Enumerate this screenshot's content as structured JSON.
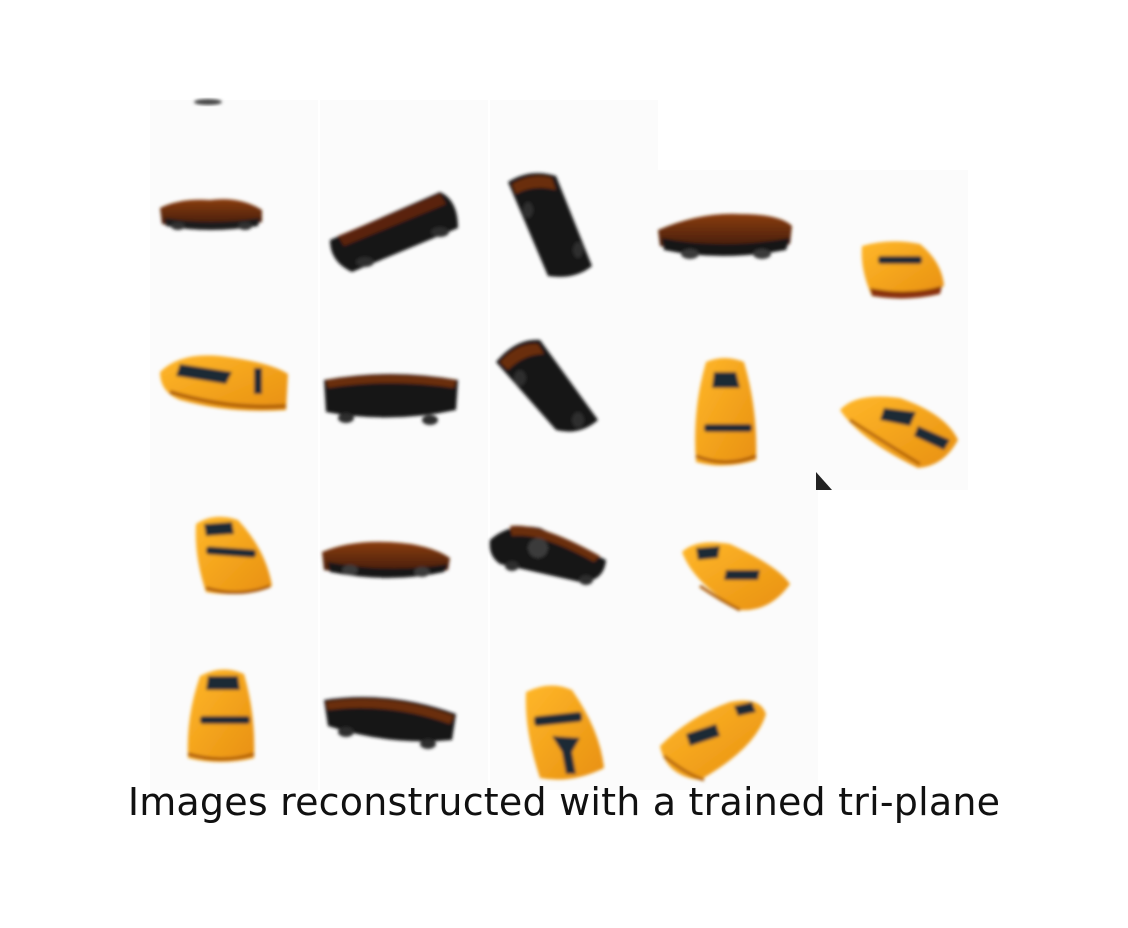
{
  "caption": "Images reconstructed with a trained tri-plane",
  "colors": {
    "background": "#ffffff",
    "car_body": "#f5a51e",
    "car_body_dark": "#b5620c",
    "car_underside": "#141414",
    "car_roof_brown": "#6a2e10",
    "window": "#1e2b36",
    "wheel": "#3a3a3a"
  },
  "grid": {
    "rows": 4,
    "columns": [
      5,
      5,
      4,
      4
    ]
  },
  "views": [
    {
      "name": "car-view-r1-c1",
      "style": "side-brown"
    },
    {
      "name": "car-view-r1-c2",
      "style": "underside-tilted"
    },
    {
      "name": "car-view-r1-c3",
      "style": "underside-vertical"
    },
    {
      "name": "car-view-r1-c4",
      "style": "side-brown"
    },
    {
      "name": "car-view-r1-c5",
      "style": "top-yellow-small"
    },
    {
      "name": "car-view-r2-c1",
      "style": "top-yellow-side"
    },
    {
      "name": "car-view-r2-c2",
      "style": "underside-flat"
    },
    {
      "name": "car-view-r2-c3",
      "style": "underside-tilted-steep"
    },
    {
      "name": "car-view-r2-c4",
      "style": "top-yellow-vertical"
    },
    {
      "name": "car-view-r2-c5",
      "style": "top-yellow-diagonal"
    },
    {
      "name": "car-view-r3-c1",
      "style": "top-yellow-vertical-skew"
    },
    {
      "name": "car-view-r3-c2",
      "style": "side-brown"
    },
    {
      "name": "car-view-r3-c3",
      "style": "underside-tilted-down"
    },
    {
      "name": "car-view-r3-c4",
      "style": "top-yellow-diagonal"
    },
    {
      "name": "car-view-r4-c1",
      "style": "top-yellow-vertical"
    },
    {
      "name": "car-view-r4-c2",
      "style": "underside-flat"
    },
    {
      "name": "car-view-r4-c3",
      "style": "bottom-yellow-vertical"
    },
    {
      "name": "car-view-r4-c4",
      "style": "top-yellow-diagonal-up"
    }
  ]
}
